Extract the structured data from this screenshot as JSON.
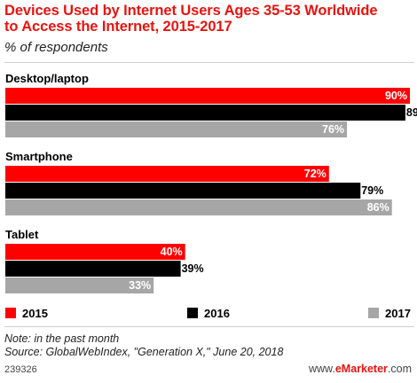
{
  "header": {
    "title_line1": "Devices Used by Internet Users Ages 35-53 Worldwide",
    "title_line2": "to Access the Internet, 2015-2017",
    "subtitle": "% of respondents"
  },
  "footer": {
    "note": "Note: in the past month",
    "source": "Source: GlobalWebIndex, \"Generation X,\" June 20, 2018",
    "chart_id": "239326",
    "brand_prefix": "www.",
    "brand_name": "eMarketer",
    "brand_suffix": ".com"
  },
  "chart_data": {
    "type": "bar",
    "orientation": "horizontal",
    "categories": [
      "Desktop/laptop",
      "Smartphone",
      "Tablet"
    ],
    "series": [
      {
        "name": "2015",
        "color": "#ff0000",
        "values": [
          90,
          72,
          40
        ]
      },
      {
        "name": "2016",
        "color": "#000000",
        "values": [
          89,
          79,
          39
        ]
      },
      {
        "name": "2017",
        "color": "#a6a6a6",
        "values": [
          76,
          86,
          33
        ]
      }
    ],
    "value_suffix": "%",
    "xlim": [
      0,
      90
    ],
    "grid": false,
    "legend_position": "bottom"
  }
}
